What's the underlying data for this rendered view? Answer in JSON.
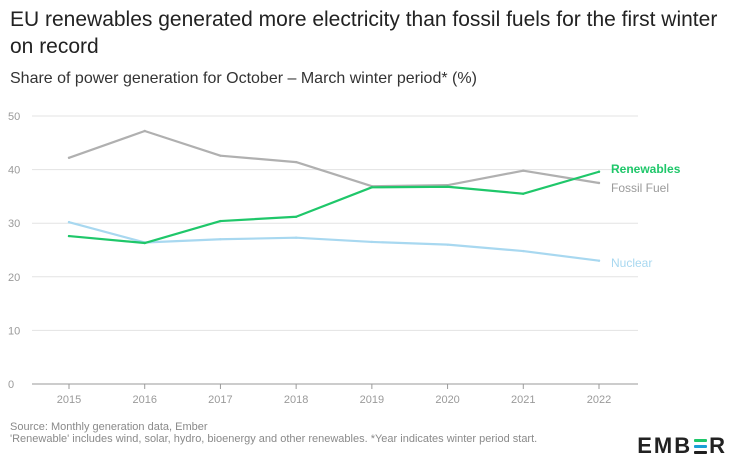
{
  "title": "EU renewables generated more electricity than fossil fuels for the first winter on record",
  "subtitle": "Share of power generation for October – March winter period* (%)",
  "footer": {
    "source": "Source: Monthly generation data, Ember",
    "note": "'Renewable' includes wind, solar, hydro, bioenergy and other renewables. *Year indicates winter period start."
  },
  "logo": {
    "prefix": "EMB",
    "suffix": "R",
    "bar_colors": [
      "#1fc76a",
      "#1a9fd6",
      "#1f1f1f"
    ]
  },
  "colors": {
    "renewables": "#1fc76a",
    "fossil": "#b0b0b0",
    "nuclear": "#a8d8f0",
    "grid": "#e3e3e3",
    "axis": "#9a9a9a",
    "tick_text": "#9a9a9a"
  },
  "chart_data": {
    "type": "line",
    "x": [
      "2015",
      "2016",
      "2017",
      "2018",
      "2019",
      "2020",
      "2021",
      "2022"
    ],
    "ylim": [
      0,
      50
    ],
    "yticks": [
      0,
      10,
      20,
      30,
      40,
      50
    ],
    "grid": true,
    "legend": "inline-right",
    "series": [
      {
        "name": "Renewables",
        "key": "renewables",
        "values": [
          27.6,
          26.3,
          30.4,
          31.2,
          36.7,
          36.8,
          35.5,
          39.6
        ]
      },
      {
        "name": "Fossil Fuel",
        "key": "fossil",
        "values": [
          42.2,
          47.2,
          42.6,
          41.4,
          36.9,
          37.1,
          39.8,
          37.5
        ]
      },
      {
        "name": "Nuclear",
        "key": "nuclear",
        "values": [
          30.2,
          26.4,
          27.0,
          27.3,
          26.5,
          26.0,
          24.8,
          23.0
        ]
      }
    ]
  }
}
